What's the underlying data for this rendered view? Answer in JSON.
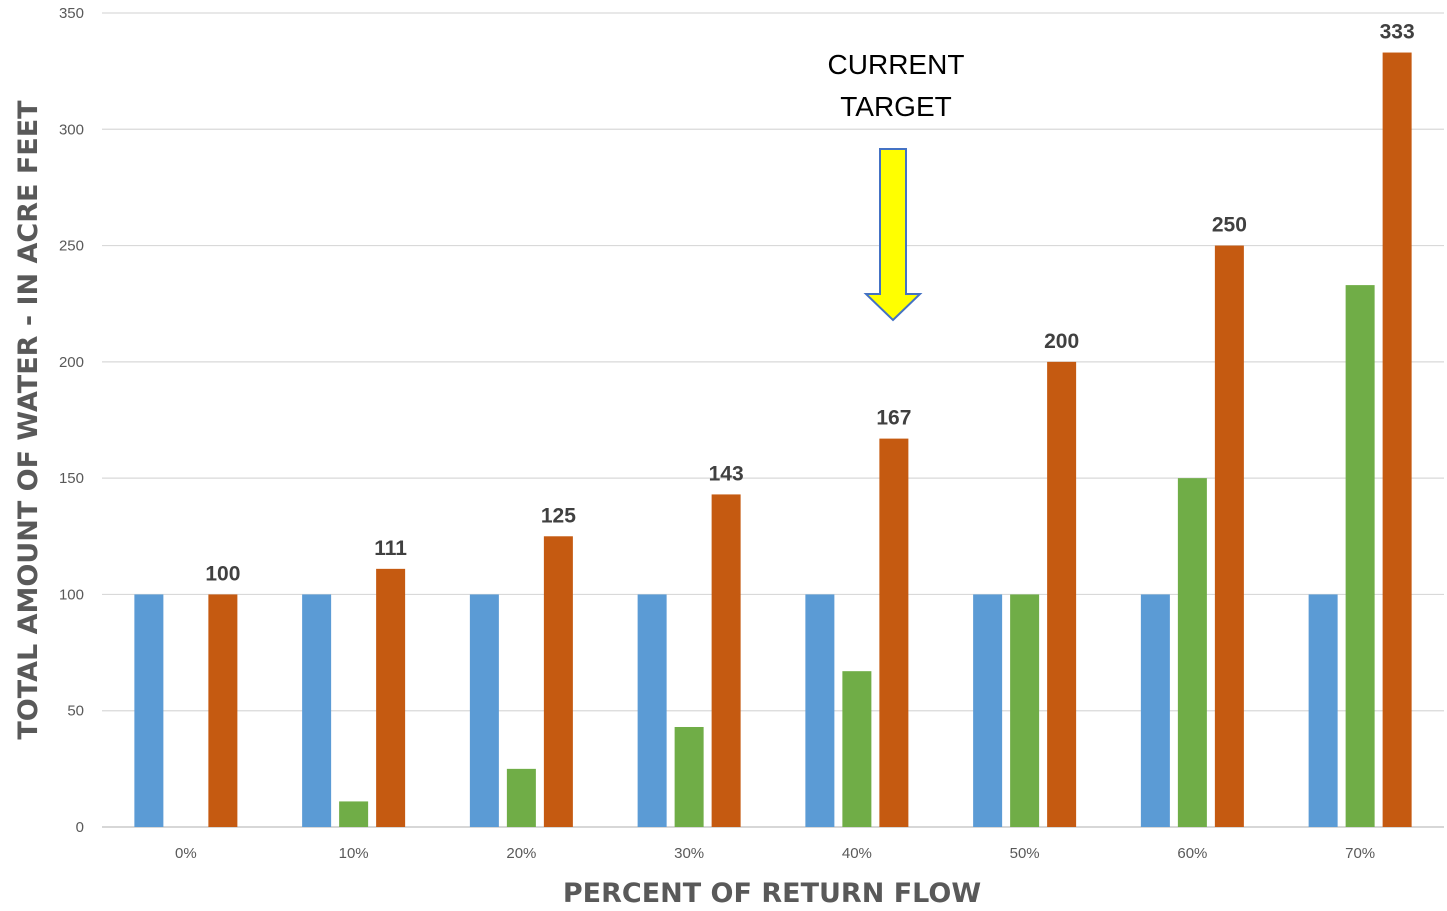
{
  "chart_data": {
    "type": "bar",
    "categories": [
      "0%",
      "10%",
      "20%",
      "30%",
      "40%",
      "50%",
      "60%",
      "70%"
    ],
    "series": [
      {
        "values": [
          100,
          100,
          100,
          100,
          100,
          100,
          100,
          100
        ],
        "color": "#5b9bd5"
      },
      {
        "values": [
          0,
          11,
          25,
          43,
          67,
          100,
          150,
          233
        ],
        "color": "#70ad47"
      },
      {
        "values": [
          100,
          111,
          125,
          143,
          167,
          200,
          250,
          333
        ],
        "color": "#c55a11",
        "data_labels": [
          "100",
          "111",
          "125",
          "143",
          "167",
          "200",
          "250",
          "333"
        ]
      }
    ],
    "xlabel": "PERCENT OF RETURN FLOW",
    "ylabel": "TOTAL AMOUNT OF WATER - IN ACRE FEET",
    "ylim": [
      0,
      350
    ],
    "yticks": [
      0,
      50,
      100,
      150,
      200,
      250,
      300,
      350
    ],
    "grid": true,
    "annotation": {
      "line1": "CURRENT",
      "line2": "TARGET",
      "arrow_color": "#ffff00",
      "arrow_outline": "#4472c4",
      "category": "40%"
    }
  }
}
